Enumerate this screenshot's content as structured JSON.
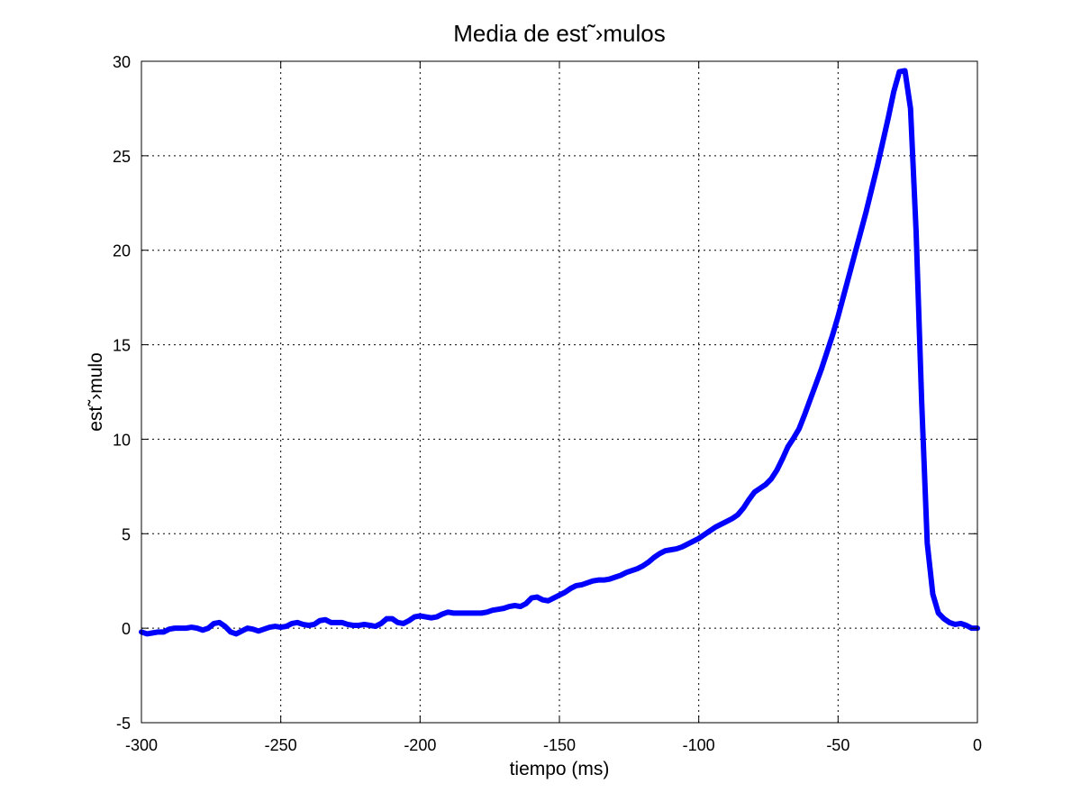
{
  "chart_data": {
    "type": "line",
    "title": "Media de est˜›mulos",
    "xlabel": "tiempo (ms)",
    "ylabel": "est˜›mulo",
    "xlim": [
      -300,
      0
    ],
    "ylim": [
      -5,
      30
    ],
    "xticks": [
      -300,
      -250,
      -200,
      -150,
      -100,
      -50,
      0
    ],
    "yticks": [
      -5,
      0,
      5,
      10,
      15,
      20,
      25,
      30
    ],
    "xtick_labels": [
      "-300",
      "-250",
      "-200",
      "-150",
      "-100",
      "-50",
      "0"
    ],
    "ytick_labels": [
      "-5",
      "0",
      "5",
      "10",
      "15",
      "20",
      "25",
      "30"
    ],
    "grid": true,
    "line_color": "#0000ff",
    "series": [
      {
        "x": [
          -300,
          -298,
          -296,
          -294,
          -292,
          -290,
          -288,
          -286,
          -284,
          -282,
          -280,
          -278,
          -276,
          -274,
          -272,
          -270,
          -268,
          -266,
          -264,
          -262,
          -260,
          -258,
          -256,
          -254,
          -252,
          -250,
          -248,
          -246,
          -244,
          -242,
          -240,
          -238,
          -236,
          -234,
          -232,
          -230,
          -228,
          -226,
          -224,
          -222,
          -220,
          -218,
          -216,
          -214,
          -212,
          -210,
          -208,
          -206,
          -204,
          -202,
          -200,
          -198,
          -196,
          -194,
          -192,
          -190,
          -188,
          -186,
          -184,
          -182,
          -180,
          -178,
          -176,
          -174,
          -172,
          -170,
          -168,
          -166,
          -164,
          -162,
          -160,
          -158,
          -156,
          -154,
          -152,
          -150,
          -148,
          -146,
          -144,
          -142,
          -140,
          -138,
          -136,
          -134,
          -132,
          -130,
          -128,
          -126,
          -124,
          -122,
          -120,
          -118,
          -116,
          -114,
          -112,
          -110,
          -108,
          -106,
          -104,
          -102,
          -100,
          -98,
          -96,
          -94,
          -92,
          -90,
          -88,
          -86,
          -84,
          -82,
          -80,
          -78,
          -76,
          -74,
          -72,
          -70,
          -68,
          -66,
          -64,
          -62,
          -60,
          -58,
          -56,
          -54,
          -52,
          -50,
          -48,
          -46,
          -44,
          -42,
          -40,
          -38,
          -36,
          -34,
          -32,
          -30,
          -28,
          -26,
          -24,
          -22,
          -20,
          -18,
          -16,
          -14,
          -12,
          -10,
          -8,
          -6,
          -4,
          -2,
          0
        ],
        "y": [
          -0.2,
          -0.3,
          -0.25,
          -0.2,
          -0.2,
          -0.05,
          0.0,
          0.0,
          0.0,
          0.05,
          0.0,
          -0.1,
          0.0,
          0.25,
          0.3,
          0.1,
          -0.2,
          -0.3,
          -0.15,
          0.0,
          -0.05,
          -0.15,
          -0.05,
          0.05,
          0.1,
          0.05,
          0.1,
          0.25,
          0.3,
          0.2,
          0.15,
          0.2,
          0.4,
          0.45,
          0.3,
          0.3,
          0.3,
          0.2,
          0.15,
          0.15,
          0.2,
          0.15,
          0.1,
          0.25,
          0.5,
          0.5,
          0.3,
          0.25,
          0.4,
          0.6,
          0.65,
          0.6,
          0.55,
          0.6,
          0.75,
          0.85,
          0.8,
          0.8,
          0.8,
          0.8,
          0.8,
          0.8,
          0.85,
          0.95,
          1.0,
          1.05,
          1.15,
          1.2,
          1.15,
          1.3,
          1.6,
          1.65,
          1.5,
          1.45,
          1.6,
          1.75,
          1.9,
          2.1,
          2.25,
          2.3,
          2.4,
          2.5,
          2.55,
          2.55,
          2.6,
          2.7,
          2.8,
          2.95,
          3.05,
          3.15,
          3.3,
          3.5,
          3.75,
          3.95,
          4.1,
          4.15,
          4.2,
          4.3,
          4.45,
          4.6,
          4.75,
          4.95,
          5.15,
          5.35,
          5.5,
          5.65,
          5.8,
          6.0,
          6.35,
          6.8,
          7.2,
          7.4,
          7.6,
          7.9,
          8.35,
          8.95,
          9.6,
          10.05,
          10.55,
          11.3,
          12.1,
          12.9,
          13.7,
          14.6,
          15.5,
          16.5,
          17.6,
          18.7,
          19.8,
          20.9,
          22.0,
          23.2,
          24.4,
          25.7,
          27.0,
          28.4,
          29.45,
          29.5,
          27.5,
          21.0,
          12.0,
          4.5,
          1.8,
          0.8,
          0.5,
          0.3,
          0.2,
          0.25,
          0.15,
          0.0,
          0.0
        ]
      }
    ]
  }
}
